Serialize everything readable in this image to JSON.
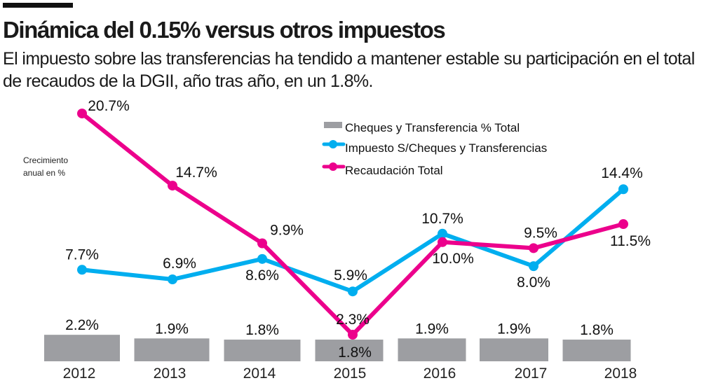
{
  "header": {
    "title": "Dinámica del 0.15% versus otros impuestos",
    "subtitle": "El impuesto sobre las transferencias ha tendido a mantener estable su participación en el total de recaudos de la DGII, año tras año, en un 1.8%."
  },
  "chart_data": {
    "type": "bar+line",
    "ylabel": "Crecimiento anual en %",
    "categories": [
      "2012",
      "2013",
      "2014",
      "2015",
      "2016",
      "2017",
      "2018"
    ],
    "legend_position": "top-right",
    "grid": false,
    "series": [
      {
        "name": "Cheques y Transferencia % Total",
        "type": "bar",
        "color": "#9d9ea2",
        "values": [
          2.2,
          1.9,
          1.8,
          1.8,
          1.9,
          1.9,
          1.8
        ],
        "labels": [
          "2.2%",
          "1.9%",
          "1.8%",
          "1.8%",
          "1.9%",
          "1.9%",
          "1.8%"
        ]
      },
      {
        "name": "Impuesto S/Cheques y Transferencias",
        "type": "line",
        "color": "#00aeef",
        "values": [
          7.7,
          6.9,
          8.6,
          5.9,
          10.7,
          8.0,
          14.4
        ],
        "labels": [
          "7.7%",
          "6.9%",
          "8.6%",
          "5.9%",
          "10.7%",
          "8.0%",
          "14.4%"
        ]
      },
      {
        "name": "Recaudación Total",
        "type": "line",
        "color": "#ec008c",
        "values": [
          20.7,
          14.7,
          9.9,
          2.3,
          10.0,
          9.5,
          11.5
        ],
        "labels": [
          "20.7%",
          "14.7%",
          "9.9%",
          "2.3%",
          "10.0%",
          "9.5%",
          "11.5%"
        ]
      }
    ]
  }
}
